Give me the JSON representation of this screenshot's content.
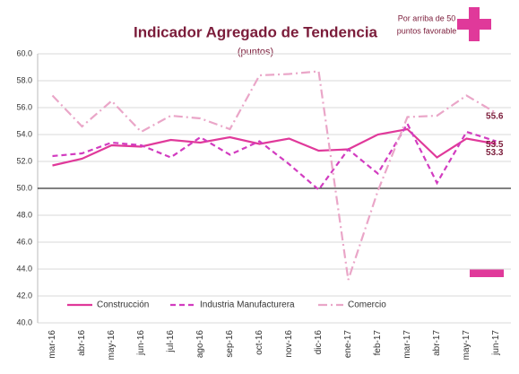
{
  "chart_data": {
    "type": "line",
    "title": "Indicador Agregado de Tendencia",
    "subtitle": "(puntos)",
    "annotation": [
      "Por arriba de 50",
      "puntos favorable"
    ],
    "categories": [
      "mar-16",
      "abr-16",
      "may-16",
      "jun-16",
      "jul-16",
      "ago-16",
      "sep-16",
      "oct-16",
      "nov-16",
      "dic-16",
      "ene-17",
      "feb-17",
      "mar-17",
      "abr-17",
      "may-17",
      "jun-17"
    ],
    "series": [
      {
        "name": "Construcción",
        "color": "#e0399a",
        "dash": "none",
        "values": [
          51.7,
          52.2,
          53.2,
          53.1,
          53.6,
          53.4,
          53.8,
          53.3,
          53.7,
          52.8,
          52.9,
          54.0,
          54.4,
          52.3,
          53.7,
          53.3
        ]
      },
      {
        "name": "Industria Manufacturera",
        "color": "#d23cc0",
        "dash": "6 4",
        "values": [
          52.4,
          52.6,
          53.4,
          53.2,
          52.3,
          53.8,
          52.5,
          53.5,
          51.8,
          49.9,
          52.9,
          51.1,
          54.8,
          50.4,
          54.2,
          53.5
        ]
      },
      {
        "name": "Comercio",
        "color": "#eaa6c8",
        "dash": "10 4 2 4",
        "values": [
          56.9,
          54.6,
          56.5,
          54.2,
          55.4,
          55.2,
          54.4,
          58.4,
          58.5,
          58.7,
          43.2,
          49.8,
          55.3,
          55.4,
          56.9,
          55.6
        ]
      }
    ],
    "ylim": [
      40,
      60
    ],
    "yticks": [
      {
        "value": 40,
        "label": "40.0"
      },
      {
        "value": 42,
        "label": "42.0"
      },
      {
        "value": 44,
        "label": "44.0"
      },
      {
        "value": 46,
        "label": "46.0"
      },
      {
        "value": 48,
        "label": "48.0"
      },
      {
        "value": 50,
        "label": "50.0"
      },
      {
        "value": 52,
        "label": "52.0"
      },
      {
        "value": 54,
        "label": "54.0"
      },
      {
        "value": 56,
        "label": "56.0"
      },
      {
        "value": 58,
        "label": "58.0"
      },
      {
        "value": 60,
        "label": "60.0"
      }
    ],
    "reference_line": 50,
    "grid": true
  }
}
